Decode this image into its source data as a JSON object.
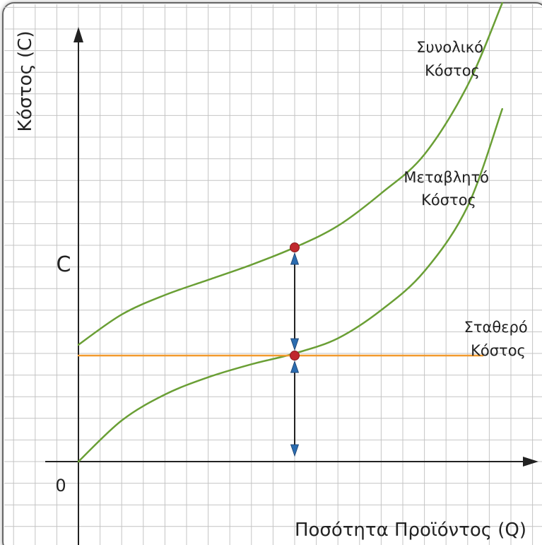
{
  "chart_data": {
    "type": "line",
    "title": "",
    "xlabel": "Ποσότητα Προϊόντος (Q)",
    "ylabel": "Κόστος (C)",
    "origin_label": "0",
    "y_marker_label": "C",
    "xlim": [
      0,
      21
    ],
    "ylim": [
      -2,
      20
    ],
    "grid": true,
    "series": [
      {
        "name": "Συνολικό Κόστος",
        "label_lines": [
          "Συνολικό",
          "Κόστος"
        ],
        "color": "#6a9f35",
        "x": [
          0,
          2,
          4,
          6,
          8,
          10,
          12,
          14,
          16,
          18,
          19.6
        ],
        "y": [
          5.4,
          6.8,
          7.7,
          8.4,
          9.1,
          9.9,
          10.9,
          12.4,
          14.2,
          17.4,
          21.2
        ]
      },
      {
        "name": "Μεταβλητό Κόστος",
        "label_lines": [
          "Μεταβλητό",
          "Κόστος"
        ],
        "color": "#6a9f35",
        "x": [
          0,
          2,
          4,
          6,
          8,
          10,
          12,
          14,
          16,
          18,
          19.6
        ],
        "y": [
          0,
          1.9,
          3.1,
          3.9,
          4.5,
          5.0,
          5.7,
          7.0,
          8.8,
          11.8,
          16.3
        ]
      },
      {
        "name": "Σταθερό Κόστος",
        "label_lines": [
          "Σταθερό",
          "Κόστος"
        ],
        "color": "#f29a2e",
        "x": [
          0,
          18.7
        ],
        "y": [
          4.9,
          4.9
        ]
      }
    ],
    "markers": [
      {
        "x": 10,
        "y": 9.9,
        "color": "#c0282d"
      },
      {
        "x": 10,
        "y": 4.9,
        "color": "#c0282d"
      }
    ],
    "double_arrows": [
      {
        "x": 10,
        "y_from": 4.9,
        "y_to": 9.9
      },
      {
        "x": 10,
        "y_from": 0,
        "y_to": 4.9
      }
    ],
    "colors": {
      "grid": "#c4c4c4",
      "axis": "#222222",
      "arrow_head": "#2b6cb0",
      "frame": "#555555"
    }
  }
}
